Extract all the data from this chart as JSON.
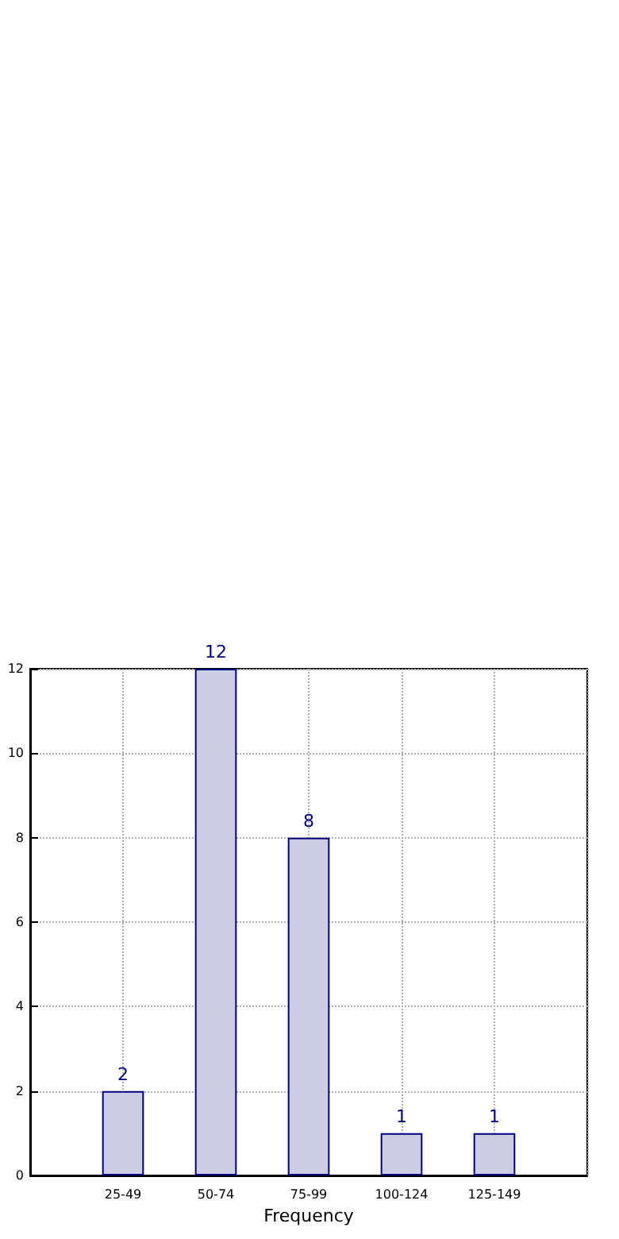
{
  "chart_data": {
    "type": "bar",
    "xlabel": "Frequency",
    "categories": [
      "25-49",
      "50-74",
      "75-99",
      "100-124",
      "125-149"
    ],
    "values": [
      2,
      12,
      8,
      1,
      1
    ],
    "color": "#cccce3",
    "ylim": [
      0,
      12
    ],
    "yticks": [
      0,
      2,
      4,
      6,
      8,
      10,
      12
    ],
    "grid": true,
    "data_labels": true
  }
}
